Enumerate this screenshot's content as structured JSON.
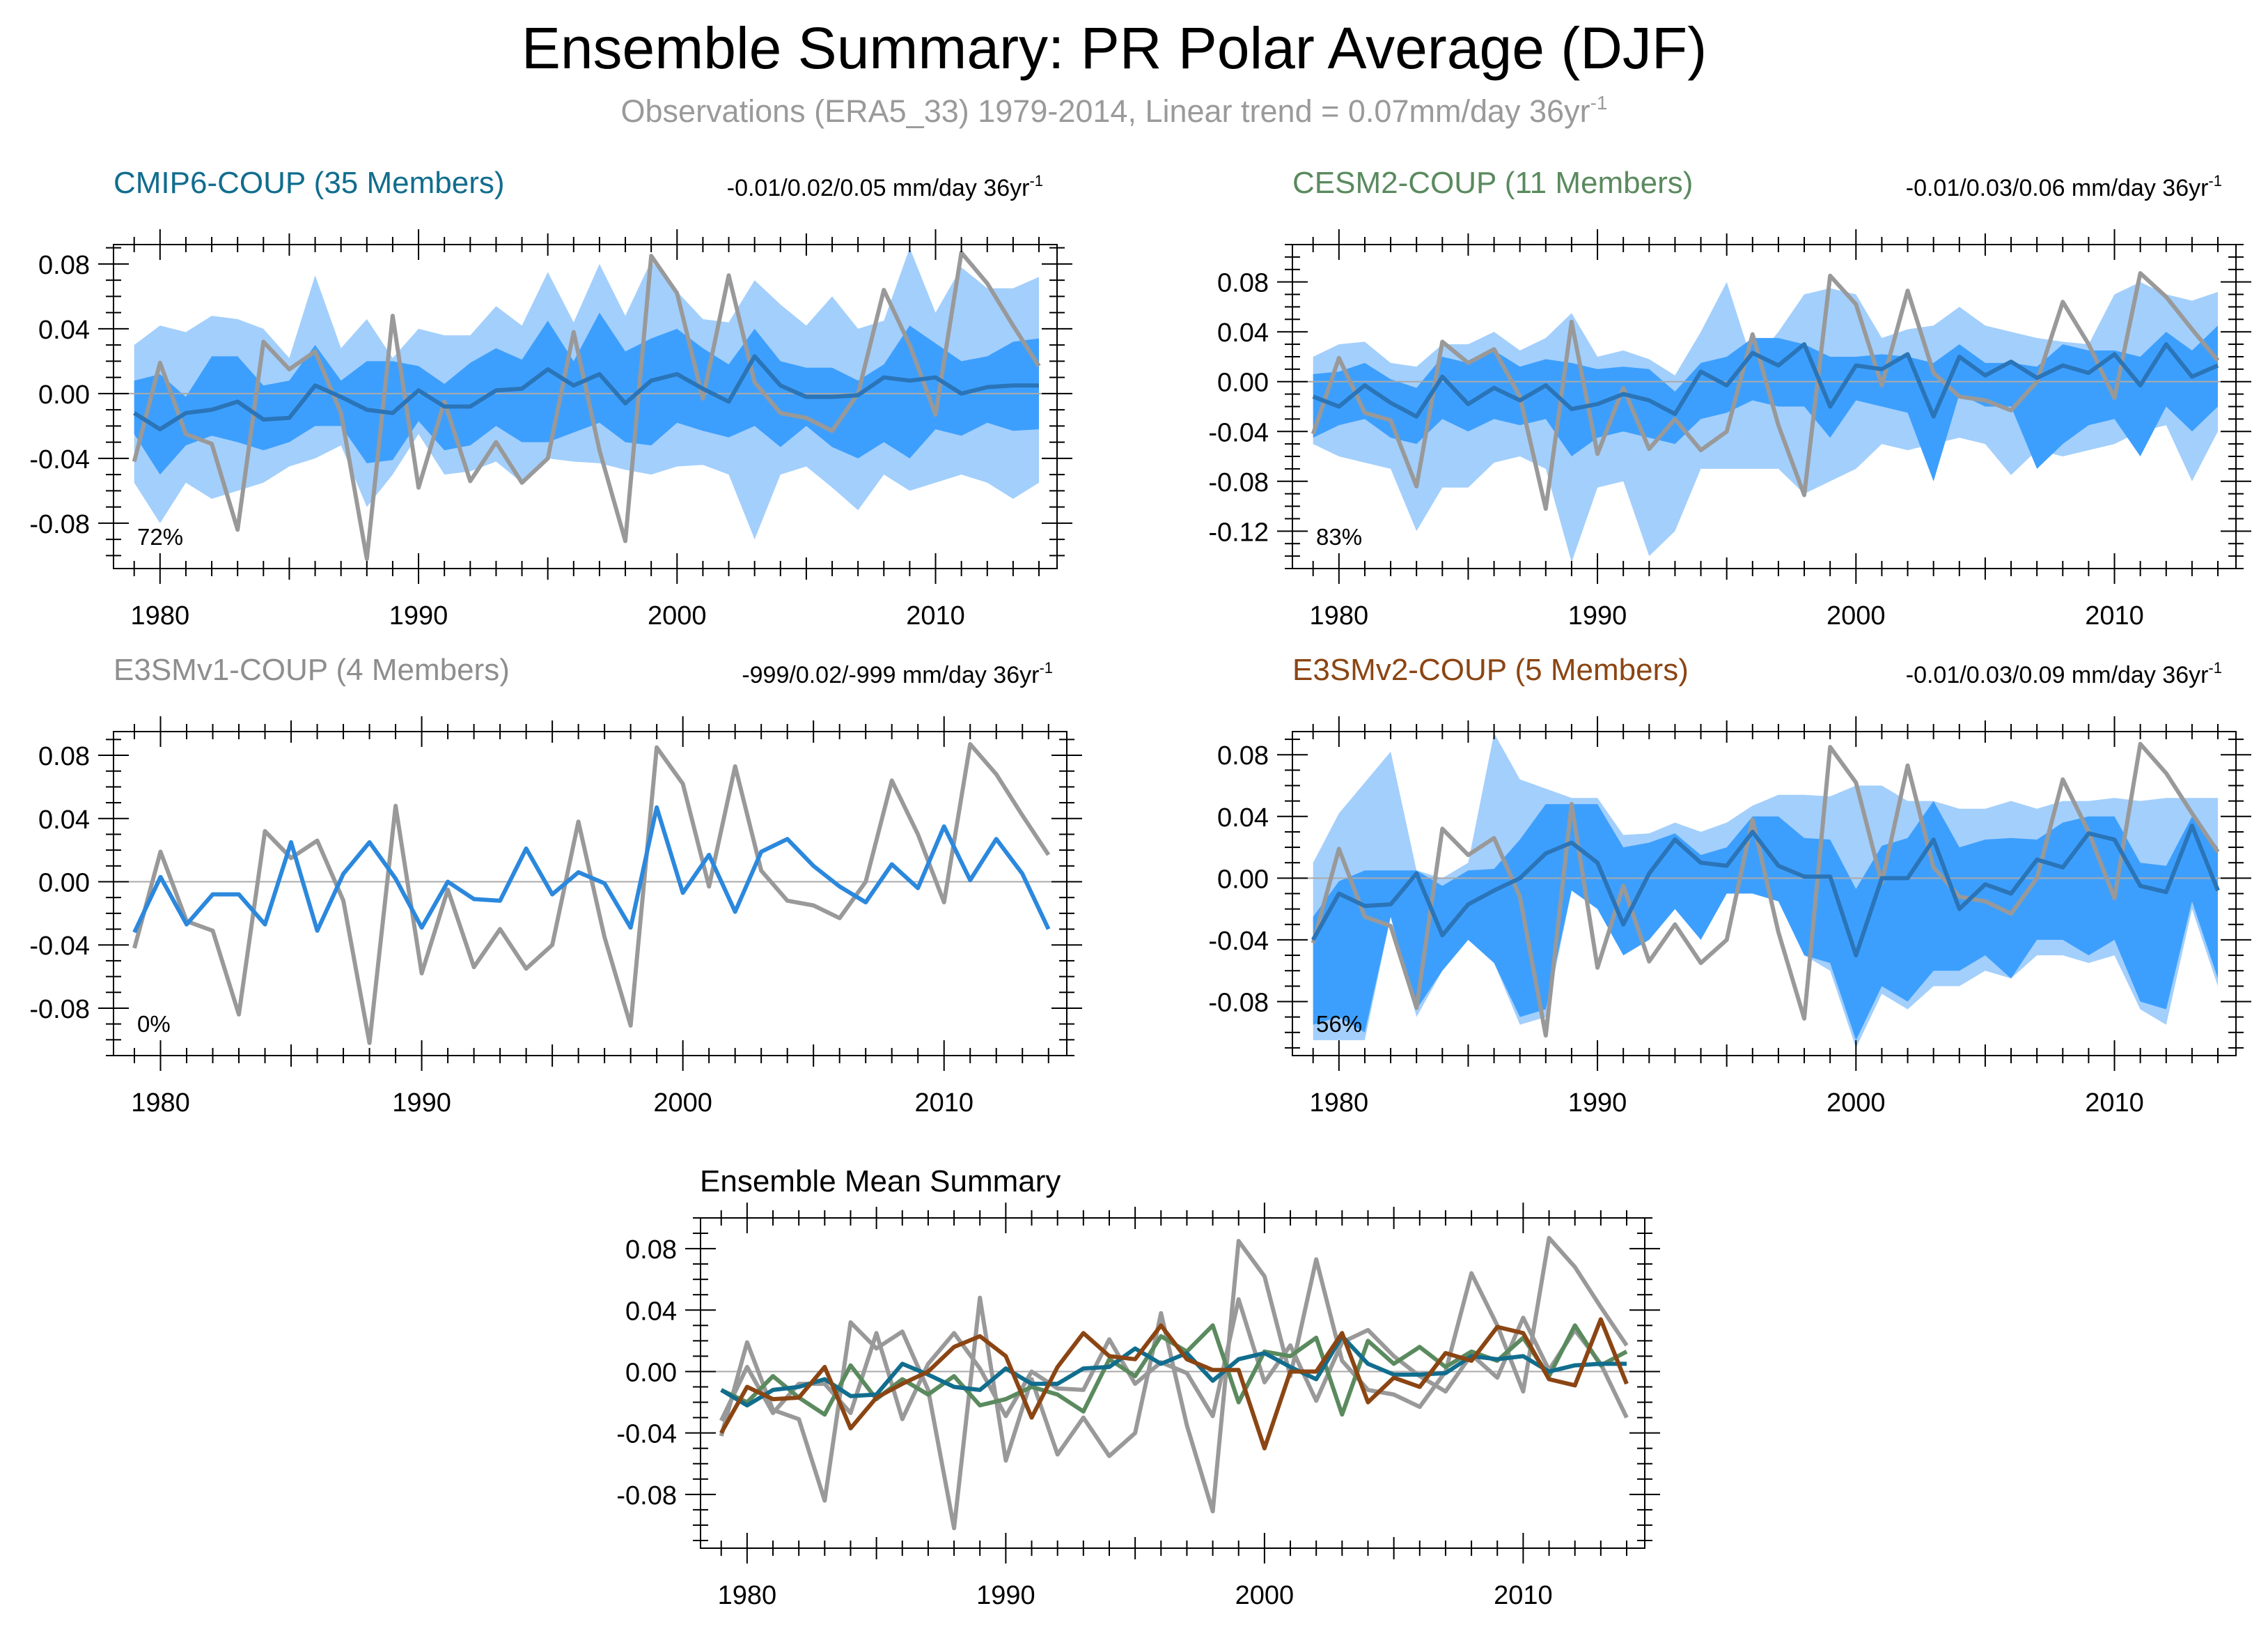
{
  "header": {
    "title": "Ensemble Summary: PR Polar Average (DJF)",
    "subtitle_main": "Observations (ERA5_33) 1979-2014, Linear trend = 0.07mm/day 36yr",
    "subtitle_sup": "-1"
  },
  "colors": {
    "obs": "#999999",
    "band_outer": "#a3cffc",
    "band_inner": "#3d9ffd",
    "ens_mean": "#2a74b8",
    "e3smv1_line": "#2b88dd",
    "cmip6_label": "#116d8e",
    "cesm2_label": "#5a8a5e",
    "e3smv1_label": "#8e8e8e",
    "e3smv2_label": "#8b4513",
    "zero_line": "#aaaaaa"
  },
  "chart_data": {
    "type": "line",
    "x": [
      1979,
      1980,
      1981,
      1982,
      1983,
      1984,
      1985,
      1986,
      1987,
      1988,
      1989,
      1990,
      1991,
      1992,
      1993,
      1994,
      1995,
      1996,
      1997,
      1998,
      1999,
      2000,
      2001,
      2002,
      2003,
      2004,
      2005,
      2006,
      2007,
      2008,
      2009,
      2010,
      2011,
      2012,
      2013,
      2014
    ],
    "observations": [
      -0.042,
      0.019,
      -0.025,
      -0.031,
      -0.084,
      0.032,
      0.015,
      0.026,
      -0.012,
      -0.102,
      0.048,
      -0.058,
      -0.005,
      -0.054,
      -0.03,
      -0.055,
      -0.04,
      0.038,
      -0.035,
      -0.091,
      0.085,
      0.062,
      -0.003,
      0.073,
      0.007,
      -0.012,
      -0.015,
      -0.023,
      0.0,
      0.064,
      0.03,
      -0.013,
      0.087,
      0.068,
      0.042,
      0.017
    ],
    "panels": [
      {
        "id": "cmip6",
        "label": "CMIP6-COUP (35 Members)",
        "trend_main": "-0.01/0.02/0.05 mm/day 36yr",
        "trend_sup": "-1",
        "percent": "72%",
        "ylim": [
          -0.108,
          0.092
        ],
        "yticks": [
          "0.08",
          "0.04",
          "0.00",
          "-0.04",
          "-0.08"
        ],
        "ytick_values": [
          0.08,
          0.04,
          0.0,
          -0.04,
          -0.08
        ],
        "xticks": [
          "1980",
          "1990",
          "2000",
          "2010"
        ],
        "xtick_values": [
          1980,
          1990,
          2000,
          2010
        ],
        "mean": [
          -0.012,
          -0.022,
          -0.012,
          -0.01,
          -0.005,
          -0.016,
          -0.015,
          0.005,
          -0.002,
          -0.01,
          -0.012,
          0.002,
          -0.008,
          -0.008,
          0.002,
          0.003,
          0.015,
          0.005,
          0.012,
          -0.006,
          0.008,
          0.012,
          0.003,
          -0.005,
          0.023,
          0.005,
          -0.002,
          -0.002,
          -0.001,
          0.01,
          0.008,
          0.01,
          0.0,
          0.004,
          0.005,
          0.005
        ],
        "outer_upper": [
          0.03,
          0.042,
          0.038,
          0.048,
          0.046,
          0.04,
          0.022,
          0.073,
          0.028,
          0.046,
          0.022,
          0.04,
          0.036,
          0.036,
          0.054,
          0.042,
          0.075,
          0.044,
          0.08,
          0.048,
          0.082,
          0.063,
          0.046,
          0.044,
          0.07,
          0.055,
          0.042,
          0.06,
          0.04,
          0.045,
          0.09,
          0.05,
          0.078,
          0.065,
          0.065,
          0.072
        ],
        "outer_lower": [
          -0.055,
          -0.08,
          -0.055,
          -0.065,
          -0.06,
          -0.055,
          -0.045,
          -0.04,
          -0.032,
          -0.07,
          -0.05,
          -0.025,
          -0.05,
          -0.048,
          -0.042,
          -0.055,
          -0.04,
          -0.042,
          -0.043,
          -0.047,
          -0.05,
          -0.045,
          -0.044,
          -0.05,
          -0.09,
          -0.05,
          -0.045,
          -0.058,
          -0.072,
          -0.05,
          -0.06,
          -0.055,
          -0.05,
          -0.055,
          -0.065,
          -0.055
        ],
        "inner_upper": [
          0.008,
          0.012,
          -0.002,
          0.023,
          0.023,
          0.005,
          0.008,
          0.03,
          0.008,
          0.02,
          0.02,
          0.017,
          0.006,
          0.019,
          0.028,
          0.021,
          0.045,
          0.02,
          0.05,
          0.026,
          0.034,
          0.04,
          0.028,
          0.018,
          0.04,
          0.02,
          0.016,
          0.016,
          0.008,
          0.018,
          0.042,
          0.031,
          0.02,
          0.023,
          0.032,
          0.034
        ],
        "inner_lower": [
          -0.025,
          -0.05,
          -0.032,
          -0.026,
          -0.03,
          -0.035,
          -0.03,
          -0.02,
          -0.02,
          -0.043,
          -0.041,
          -0.017,
          -0.035,
          -0.032,
          -0.02,
          -0.03,
          -0.03,
          -0.024,
          -0.018,
          -0.03,
          -0.032,
          -0.018,
          -0.023,
          -0.027,
          -0.02,
          -0.033,
          -0.02,
          -0.033,
          -0.04,
          -0.03,
          -0.04,
          -0.022,
          -0.026,
          -0.018,
          -0.023,
          -0.022
        ]
      },
      {
        "id": "cesm2",
        "label": "CESM2-COUP (11 Members)",
        "trend_main": "-0.01/0.03/0.06 mm/day 36yr",
        "trend_sup": "-1",
        "percent": "83%",
        "ylim": [
          -0.15,
          0.11
        ],
        "yticks": [
          "0.08",
          "0.04",
          "0.00",
          "-0.04",
          "-0.08",
          "-0.12"
        ],
        "ytick_values": [
          0.08,
          0.04,
          0.0,
          -0.04,
          -0.08,
          -0.12
        ],
        "xticks": [
          "1980",
          "1990",
          "2000",
          "2010"
        ],
        "xtick_values": [
          1980,
          1990,
          2000,
          2010
        ],
        "mean": [
          -0.012,
          -0.02,
          -0.003,
          -0.017,
          -0.028,
          0.004,
          -0.018,
          -0.005,
          -0.015,
          -0.003,
          -0.022,
          -0.018,
          -0.01,
          -0.015,
          -0.026,
          0.008,
          -0.003,
          0.023,
          0.013,
          0.03,
          -0.02,
          0.013,
          0.01,
          0.022,
          -0.028,
          0.02,
          0.005,
          0.016,
          0.003,
          0.013,
          0.007,
          0.022,
          -0.003,
          0.03,
          0.004,
          0.013
        ],
        "outer_upper": [
          0.02,
          0.03,
          0.032,
          0.015,
          0.012,
          0.03,
          0.03,
          0.04,
          0.025,
          0.035,
          0.055,
          0.02,
          0.025,
          0.018,
          0.005,
          0.04,
          0.08,
          0.015,
          0.04,
          0.07,
          0.075,
          0.07,
          0.035,
          0.042,
          0.045,
          0.06,
          0.045,
          0.04,
          0.035,
          0.032,
          0.03,
          0.07,
          0.08,
          0.07,
          0.065,
          0.072
        ],
        "outer_lower": [
          -0.05,
          -0.06,
          -0.065,
          -0.07,
          -0.12,
          -0.085,
          -0.085,
          -0.065,
          -0.06,
          -0.07,
          -0.145,
          -0.085,
          -0.08,
          -0.14,
          -0.12,
          -0.07,
          -0.07,
          -0.07,
          -0.07,
          -0.09,
          -0.08,
          -0.07,
          -0.05,
          -0.055,
          -0.05,
          -0.045,
          -0.05,
          -0.075,
          -0.055,
          -0.06,
          -0.055,
          -0.05,
          -0.04,
          -0.035,
          -0.08,
          -0.04
        ],
        "inner_upper": [
          0.006,
          0.008,
          0.015,
          0.002,
          -0.005,
          0.02,
          0.015,
          0.025,
          0.012,
          0.018,
          0.015,
          0.01,
          0.012,
          0.01,
          -0.008,
          0.015,
          0.02,
          0.035,
          0.035,
          0.03,
          0.02,
          0.02,
          0.022,
          0.02,
          0.015,
          0.03,
          0.015,
          0.015,
          0.012,
          0.03,
          0.025,
          0.025,
          0.02,
          0.04,
          0.025,
          0.045
        ],
        "inner_lower": [
          -0.045,
          -0.035,
          -0.03,
          -0.045,
          -0.05,
          -0.03,
          -0.04,
          -0.03,
          -0.035,
          -0.03,
          -0.06,
          -0.045,
          -0.04,
          -0.045,
          -0.05,
          -0.03,
          -0.025,
          -0.015,
          -0.02,
          -0.02,
          -0.045,
          -0.015,
          -0.02,
          -0.025,
          -0.08,
          -0.01,
          -0.02,
          -0.02,
          -0.07,
          -0.05,
          -0.035,
          -0.03,
          -0.06,
          -0.02,
          -0.04,
          -0.02
        ]
      },
      {
        "id": "e3smv1",
        "label": "E3SMv1-COUP (4 Members)",
        "trend_main": "-999/0.02/-999 mm/day 36yr",
        "trend_sup": "-1",
        "percent": "0%",
        "ylim": [
          -0.11,
          0.095
        ],
        "yticks": [
          "0.08",
          "0.04",
          "0.00",
          "-0.04",
          "-0.08"
        ],
        "ytick_values": [
          0.08,
          0.04,
          0.0,
          -0.04,
          -0.08
        ],
        "xticks": [
          "1980",
          "1990",
          "2000",
          "2010"
        ],
        "xtick_values": [
          1980,
          1990,
          2000,
          2010
        ],
        "mean": [
          -0.032,
          0.003,
          -0.027,
          -0.008,
          -0.008,
          -0.027,
          0.025,
          -0.031,
          0.005,
          0.025,
          0.002,
          -0.029,
          0.0,
          -0.011,
          -0.012,
          0.021,
          -0.008,
          0.006,
          -0.001,
          -0.029,
          0.047,
          -0.007,
          0.017,
          -0.019,
          0.019,
          0.027,
          0.01,
          -0.003,
          -0.013,
          0.011,
          -0.004,
          0.035,
          0.001,
          0.027,
          0.005,
          -0.03
        ]
      },
      {
        "id": "e3smv2",
        "label": "E3SMv2-COUP (5 Members)",
        "trend_main": "-0.01/0.03/0.09 mm/day 36yr",
        "trend_sup": "-1",
        "percent": "56%",
        "ylim": [
          -0.115,
          0.095
        ],
        "yticks": [
          "0.08",
          "0.04",
          "0.00",
          "-0.04",
          "-0.08"
        ],
        "ytick_values": [
          0.08,
          0.04,
          0.0,
          -0.04,
          -0.08
        ],
        "xticks": [
          "1980",
          "1990",
          "2000",
          "2010"
        ],
        "xtick_values": [
          1980,
          1990,
          2000,
          2010
        ],
        "mean": [
          -0.04,
          -0.01,
          -0.018,
          -0.017,
          0.003,
          -0.037,
          -0.017,
          -0.008,
          0.0,
          0.016,
          0.023,
          0.01,
          -0.03,
          0.003,
          0.025,
          0.01,
          0.008,
          0.03,
          0.008,
          0.001,
          0.001,
          -0.05,
          0.0,
          0.0,
          0.025,
          -0.02,
          -0.004,
          -0.01,
          0.012,
          0.007,
          0.029,
          0.025,
          -0.005,
          -0.009,
          0.034,
          -0.008
        ],
        "outer_upper": [
          0.01,
          0.042,
          0.062,
          0.082,
          0.005,
          0.0,
          0.01,
          0.094,
          0.064,
          0.058,
          0.052,
          0.052,
          0.028,
          0.029,
          0.036,
          0.03,
          0.036,
          0.047,
          0.054,
          0.054,
          0.053,
          0.06,
          0.06,
          0.05,
          0.05,
          0.045,
          0.045,
          0.05,
          0.045,
          0.05,
          0.05,
          0.052,
          0.05,
          0.052,
          0.052,
          0.052
        ],
        "outer_lower": [
          -0.105,
          -0.105,
          -0.105,
          -0.025,
          -0.09,
          -0.06,
          -0.04,
          -0.055,
          -0.095,
          -0.09,
          -0.008,
          -0.02,
          -0.05,
          -0.04,
          -0.02,
          -0.04,
          -0.01,
          -0.01,
          -0.015,
          -0.05,
          -0.06,
          -0.11,
          -0.075,
          -0.085,
          -0.07,
          -0.07,
          -0.06,
          -0.065,
          -0.05,
          -0.05,
          -0.055,
          -0.05,
          -0.085,
          -0.095,
          -0.02,
          -0.07
        ],
        "inner_upper": [
          -0.025,
          -0.002,
          0.005,
          0.005,
          0.005,
          -0.005,
          0.005,
          0.006,
          0.025,
          0.048,
          0.048,
          0.048,
          0.02,
          0.023,
          0.029,
          0.015,
          0.02,
          0.04,
          0.04,
          0.026,
          0.025,
          -0.007,
          0.021,
          0.026,
          0.05,
          0.02,
          0.025,
          0.026,
          0.025,
          0.036,
          0.04,
          0.04,
          0.01,
          0.008,
          0.04,
          0.02
        ],
        "inner_lower": [
          -0.095,
          -0.09,
          -0.1,
          -0.025,
          -0.085,
          -0.06,
          -0.04,
          -0.055,
          -0.09,
          -0.085,
          -0.008,
          -0.02,
          -0.05,
          -0.04,
          -0.02,
          -0.04,
          -0.01,
          -0.01,
          -0.015,
          -0.05,
          -0.055,
          -0.105,
          -0.07,
          -0.08,
          -0.06,
          -0.06,
          -0.05,
          -0.065,
          -0.04,
          -0.04,
          -0.05,
          -0.04,
          -0.08,
          -0.085,
          -0.015,
          -0.065
        ]
      },
      {
        "id": "summary",
        "label": "Ensemble Mean Summary",
        "ylim": [
          -0.115,
          0.1
        ],
        "yticks": [
          "0.08",
          "0.04",
          "0.00",
          "-0.04",
          "-0.08"
        ],
        "ytick_values": [
          0.08,
          0.04,
          0.0,
          -0.04,
          -0.08
        ],
        "xticks": [
          "1980",
          "1990",
          "2000",
          "2010"
        ],
        "xtick_values": [
          1980,
          1990,
          2000,
          2010
        ]
      }
    ]
  }
}
